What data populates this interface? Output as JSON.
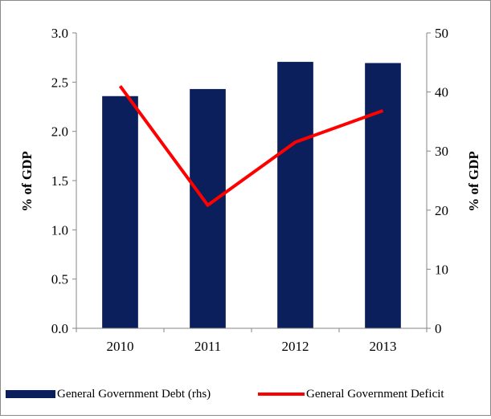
{
  "chart_data": {
    "type": "bar",
    "categories": [
      "2010",
      "2011",
      "2012",
      "2013"
    ],
    "series": [
      {
        "name": "General Government Debt (rhs)",
        "type": "bar",
        "axis": "right",
        "color": "#0a1f5c",
        "values": [
          39.3,
          40.5,
          45.1,
          44.9
        ]
      },
      {
        "name": "General Government Deficit",
        "type": "line",
        "axis": "left",
        "color": "#ff0000",
        "values": [
          2.46,
          1.25,
          1.89,
          2.21
        ]
      }
    ],
    "ylabel": "% of GDP",
    "y2label": "% of GDP",
    "ylim": [
      0,
      3.0
    ],
    "y2lim": [
      0,
      50
    ],
    "yticks": [
      "0.0",
      "0.5",
      "1.0",
      "1.5",
      "2.0",
      "2.5",
      "3.0"
    ],
    "y2ticks": [
      "0",
      "10",
      "20",
      "30",
      "40",
      "50"
    ],
    "grid": false,
    "legend": "bottom"
  }
}
